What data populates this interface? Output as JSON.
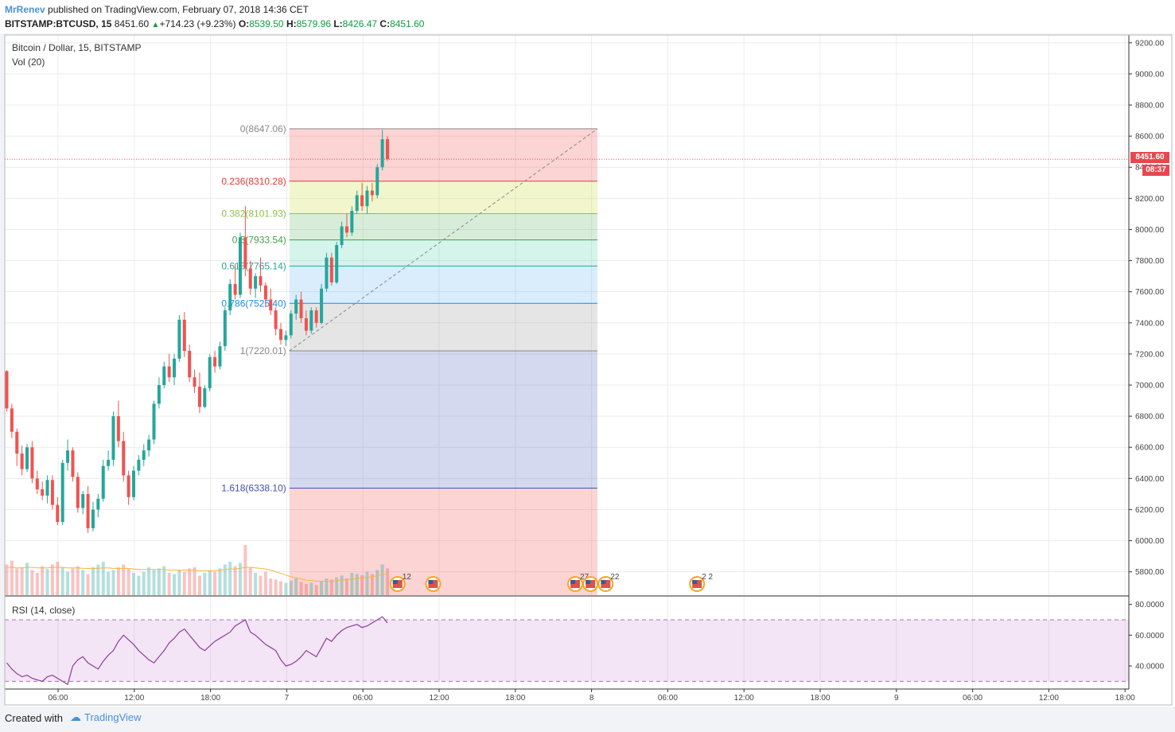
{
  "header": {
    "user": "MrRenev",
    "published": "published on TradingView.com, February 07, 2018 14:36 CET",
    "symbol": "BITSTAMP:BTCUSD, 15",
    "last": "8451.60",
    "change": "+714.23 (+9.23%)",
    "o_label": "O:",
    "o_value": "8539.50",
    "h_label": "H:",
    "h_value": "8579.96",
    "l_label": "L:",
    "l_value": "8426.47",
    "c_label": "C:",
    "c_value": "8451.60"
  },
  "overlay": {
    "title": "Bitcoin / Dollar, 15, BITSTAMP",
    "volume": "Vol (20)",
    "rsi": "RSI (14, close)"
  },
  "price_tag": {
    "price": "8451.60",
    "countdown": "08:37"
  },
  "footer": {
    "created": "Created with",
    "brand": "TradingView"
  },
  "colors": {
    "up": "#26a69a",
    "down": "#ef5350",
    "ma": "#f6b73c",
    "rsi": "#8e3c9e",
    "accent": "#4a90d9"
  },
  "chart_data": {
    "type": "candlestick",
    "title": "Bitcoin / Dollar, 15, BITSTAMP",
    "ylim": [
      5650,
      9250
    ],
    "y_ticks": [
      "9200.00",
      "9000.00",
      "8800.00",
      "8600.00",
      "8400.00",
      "8200.00",
      "8000.00",
      "7800.00",
      "7600.00",
      "7400.00",
      "7200.00",
      "7000.00",
      "6800.00",
      "6600.00",
      "6400.00",
      "6200.00",
      "6000.00",
      "5800.00"
    ],
    "x_ticks": [
      "06:00",
      "12:00",
      "18:00",
      "7",
      "06:00",
      "12:00",
      "18:00",
      "8",
      "06:00",
      "12:00",
      "18:00",
      "9",
      "06:00",
      "12:00",
      "18:00"
    ],
    "last_price": 8451.6,
    "fib_retracement": [
      {
        "label": "0(8647.06)",
        "ratio": 0,
        "price": 8647.06,
        "color": "#888888",
        "fill": "rgba(239,83,80,0.25)"
      },
      {
        "label": "0.236(8310.28)",
        "ratio": 0.236,
        "price": 8310.28,
        "color": "#e53935",
        "fill": "rgba(205,220,57,0.25)"
      },
      {
        "label": "0.382(8101.93)",
        "ratio": 0.382,
        "price": 8101.93,
        "color": "#8bc34a",
        "fill": "rgba(76,175,80,0.22)"
      },
      {
        "label": "0.5(7933.54)",
        "ratio": 0.5,
        "price": 7933.54,
        "color": "#43a047",
        "fill": "rgba(38,198,158,0.2)"
      },
      {
        "label": "0.618(7765.14)",
        "ratio": 0.618,
        "price": 7765.14,
        "color": "#26a69a",
        "fill": "rgba(66,165,245,0.2)"
      },
      {
        "label": "0.786(7525.40)",
        "ratio": 0.786,
        "price": 7525.4,
        "color": "#1e88e5",
        "fill": "rgba(150,150,150,0.25)"
      },
      {
        "label": "1(7220.01)",
        "ratio": 1,
        "price": 7220.01,
        "color": "#888888",
        "fill": "rgba(63,81,181,0.22)"
      },
      {
        "label": "1.618(6338.10)",
        "ratio": 1.618,
        "price": 6338.1,
        "color": "#3f51b5",
        "fill": "rgba(239,83,80,0.25)"
      }
    ],
    "candles": [
      [
        7090,
        7095,
        6830,
        6850
      ],
      [
        6850,
        6880,
        6660,
        6700
      ],
      [
        6700,
        6720,
        6480,
        6560
      ],
      [
        6560,
        6610,
        6420,
        6460
      ],
      [
        6460,
        6620,
        6440,
        6600
      ],
      [
        6600,
        6640,
        6370,
        6400
      ],
      [
        6400,
        6450,
        6300,
        6330
      ],
      [
        6330,
        6380,
        6260,
        6290
      ],
      [
        6290,
        6420,
        6240,
        6390
      ],
      [
        6390,
        6420,
        6200,
        6230
      ],
      [
        6230,
        6280,
        6100,
        6120
      ],
      [
        6120,
        6520,
        6100,
        6500
      ],
      [
        6500,
        6650,
        6450,
        6580
      ],
      [
        6580,
        6600,
        6380,
        6410
      ],
      [
        6410,
        6440,
        6180,
        6210
      ],
      [
        6210,
        6320,
        6170,
        6300
      ],
      [
        6300,
        6350,
        6050,
        6080
      ],
      [
        6080,
        6250,
        6060,
        6200
      ],
      [
        6200,
        6300,
        6150,
        6270
      ],
      [
        6270,
        6520,
        6250,
        6480
      ],
      [
        6480,
        6580,
        6450,
        6520
      ],
      [
        6520,
        6830,
        6480,
        6800
      ],
      [
        6800,
        6900,
        6600,
        6640
      ],
      [
        6640,
        6700,
        6380,
        6420
      ],
      [
        6420,
        6450,
        6230,
        6280
      ],
      [
        6280,
        6480,
        6260,
        6450
      ],
      [
        6450,
        6550,
        6420,
        6520
      ],
      [
        6520,
        6620,
        6480,
        6580
      ],
      [
        6580,
        6680,
        6540,
        6650
      ],
      [
        6650,
        6900,
        6620,
        6880
      ],
      [
        6880,
        7050,
        6850,
        7000
      ],
      [
        7000,
        7150,
        6980,
        7120
      ],
      [
        7120,
        7200,
        7020,
        7050
      ],
      [
        7050,
        7200,
        7000,
        7170
      ],
      [
        7170,
        7450,
        7150,
        7420
      ],
      [
        7420,
        7470,
        7180,
        7220
      ],
      [
        7220,
        7260,
        7020,
        7050
      ],
      [
        7050,
        7100,
        6950,
        6990
      ],
      [
        6990,
        7080,
        6820,
        6860
      ],
      [
        6860,
        7000,
        6850,
        6980
      ],
      [
        6980,
        7200,
        6960,
        7180
      ],
      [
        7180,
        7220,
        7080,
        7120
      ],
      [
        7120,
        7280,
        7100,
        7250
      ],
      [
        7250,
        7500,
        7220,
        7480
      ],
      [
        7480,
        7680,
        7450,
        7650
      ],
      [
        7650,
        7780,
        7550,
        7580
      ],
      [
        7580,
        7980,
        7560,
        7950
      ],
      [
        7950,
        8150,
        7700,
        7750
      ],
      [
        7750,
        7800,
        7580,
        7620
      ],
      [
        7620,
        7720,
        7560,
        7700
      ],
      [
        7700,
        7820,
        7600,
        7640
      ],
      [
        7640,
        7660,
        7500,
        7550
      ],
      [
        7550,
        7620,
        7450,
        7480
      ],
      [
        7480,
        7500,
        7320,
        7360
      ],
      [
        7360,
        7400,
        7260,
        7290
      ],
      [
        7290,
        7350,
        7250,
        7320
      ],
      [
        7320,
        7480,
        7300,
        7460
      ],
      [
        7460,
        7580,
        7420,
        7550
      ],
      [
        7550,
        7600,
        7400,
        7430
      ],
      [
        7430,
        7480,
        7320,
        7350
      ],
      [
        7350,
        7500,
        7330,
        7480
      ],
      [
        7480,
        7500,
        7370,
        7400
      ],
      [
        7400,
        7650,
        7390,
        7620
      ],
      [
        7620,
        7850,
        7600,
        7820
      ],
      [
        7820,
        7850,
        7640,
        7660
      ],
      [
        7660,
        7920,
        7650,
        7900
      ],
      [
        7900,
        8050,
        7880,
        8020
      ],
      [
        8020,
        8100,
        7950,
        7980
      ],
      [
        7980,
        8150,
        7960,
        8120
      ],
      [
        8120,
        8250,
        8100,
        8220
      ],
      [
        8220,
        8300,
        8120,
        8150
      ],
      [
        8150,
        8280,
        8100,
        8250
      ],
      [
        8250,
        8300,
        8180,
        8220
      ],
      [
        8220,
        8420,
        8200,
        8400
      ],
      [
        8400,
        8640,
        8380,
        8580
      ],
      [
        8580,
        8600,
        8440,
        8452
      ]
    ],
    "volume_ylim": [
      0,
      1
    ],
    "volume": [
      0.55,
      0.62,
      0.48,
      0.5,
      0.58,
      0.45,
      0.4,
      0.52,
      0.47,
      0.55,
      0.6,
      0.5,
      0.42,
      0.48,
      0.52,
      0.45,
      0.38,
      0.5,
      0.55,
      0.6,
      0.42,
      0.45,
      0.5,
      0.55,
      0.48,
      0.4,
      0.35,
      0.42,
      0.5,
      0.45,
      0.48,
      0.52,
      0.4,
      0.38,
      0.45,
      0.42,
      0.48,
      0.5,
      0.35,
      0.4,
      0.45,
      0.42,
      0.48,
      0.55,
      0.6,
      0.52,
      0.58,
      0.9,
      0.5,
      0.4,
      0.35,
      0.42,
      0.3,
      0.28,
      0.25,
      0.22,
      0.26,
      0.3,
      0.24,
      0.2,
      0.22,
      0.18,
      0.25,
      0.3,
      0.28,
      0.32,
      0.35,
      0.3,
      0.4,
      0.38,
      0.36,
      0.42,
      0.38,
      0.45,
      0.55,
      0.48
    ],
    "volume_ma": [
      0.5,
      0.5,
      0.49,
      0.49,
      0.5,
      0.5,
      0.49,
      0.49,
      0.49,
      0.5,
      0.5,
      0.5,
      0.49,
      0.49,
      0.49,
      0.48,
      0.48,
      0.48,
      0.48,
      0.49,
      0.49,
      0.48,
      0.48,
      0.48,
      0.48,
      0.47,
      0.46,
      0.46,
      0.46,
      0.46,
      0.46,
      0.46,
      0.45,
      0.45,
      0.45,
      0.45,
      0.45,
      0.45,
      0.44,
      0.44,
      0.44,
      0.44,
      0.45,
      0.46,
      0.47,
      0.47,
      0.48,
      0.5,
      0.5,
      0.49,
      0.48,
      0.47,
      0.45,
      0.42,
      0.39,
      0.36,
      0.33,
      0.31,
      0.29,
      0.27,
      0.26,
      0.25,
      0.25,
      0.25,
      0.25,
      0.26,
      0.27,
      0.28,
      0.29,
      0.3,
      0.31,
      0.32,
      0.33,
      0.35,
      0.37,
      0.38
    ],
    "rsi_ylim": [
      25,
      85
    ],
    "rsi_ticks": [
      "80.0000",
      "60.0000",
      "40.0000"
    ],
    "rsi_bands": [
      70,
      30
    ],
    "rsi": [
      42,
      38,
      35,
      33,
      34,
      32,
      31,
      30,
      33,
      34,
      32,
      30,
      28,
      40,
      44,
      46,
      42,
      40,
      38,
      43,
      47,
      50,
      56,
      60,
      57,
      54,
      50,
      47,
      44,
      42,
      46,
      50,
      55,
      58,
      62,
      64,
      60,
      56,
      52,
      50,
      53,
      56,
      58,
      60,
      62,
      66,
      68,
      70,
      62,
      60,
      57,
      54,
      52,
      50,
      44,
      40,
      41,
      43,
      46,
      50,
      48,
      46,
      52,
      58,
      56,
      60,
      63,
      65,
      66,
      67,
      65,
      66,
      68,
      70,
      72,
      68
    ],
    "events": [
      {
        "x_index": 77,
        "label": "12"
      },
      {
        "x_index": 84
      },
      {
        "x_index": 112,
        "label": "27"
      },
      {
        "x_index": 115
      },
      {
        "x_index": 118,
        "label": "22"
      },
      {
        "x_index": 136,
        "label": "2 2"
      }
    ],
    "fib_start_index": 56,
    "fib_end_index": 117
  }
}
